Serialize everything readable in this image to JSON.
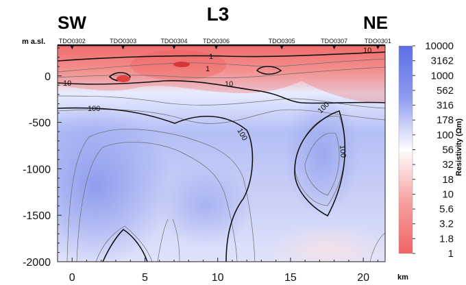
{
  "chart_data": {
    "type": "heatmap",
    "title": "L3",
    "direction_left": "SW",
    "direction_right": "NE",
    "ylabel": "m a.sl.",
    "xlabel": "km",
    "xlim": [
      -1,
      21.5
    ],
    "ylim": [
      -2000,
      330
    ],
    "x_ticks": [
      "0",
      "5",
      "10",
      "15",
      "20"
    ],
    "y_ticks": [
      "0",
      "-500",
      "-1000",
      "-1500",
      "-2000"
    ],
    "stations": [
      {
        "name": "TDO0302",
        "x": 0.0
      },
      {
        "name": "TDO0303",
        "x": 3.5
      },
      {
        "name": "TDO0304",
        "x": 7.0
      },
      {
        "name": "TDO0306",
        "x": 9.9
      },
      {
        "name": "TDO0305",
        "x": 14.4
      },
      {
        "name": "TDO0307",
        "x": 18.0
      },
      {
        "name": "TDO0301",
        "x": 21.0
      }
    ],
    "colorbar": {
      "label": "Resistivity (Ωm)",
      "ticks": [
        "10000",
        "3162",
        "1000",
        "562",
        "316",
        "178",
        "100",
        "56",
        "32",
        "18",
        "10",
        "5.6",
        "3.2",
        "1.8",
        "1"
      ],
      "high_color": "#5c6fe6",
      "mid_color": "#ffffff",
      "low_color": "#f06464"
    },
    "contour_labels": [
      "10",
      "10",
      "10",
      "100",
      "100",
      "100",
      "100",
      "1",
      "1"
    ],
    "grid": false
  }
}
